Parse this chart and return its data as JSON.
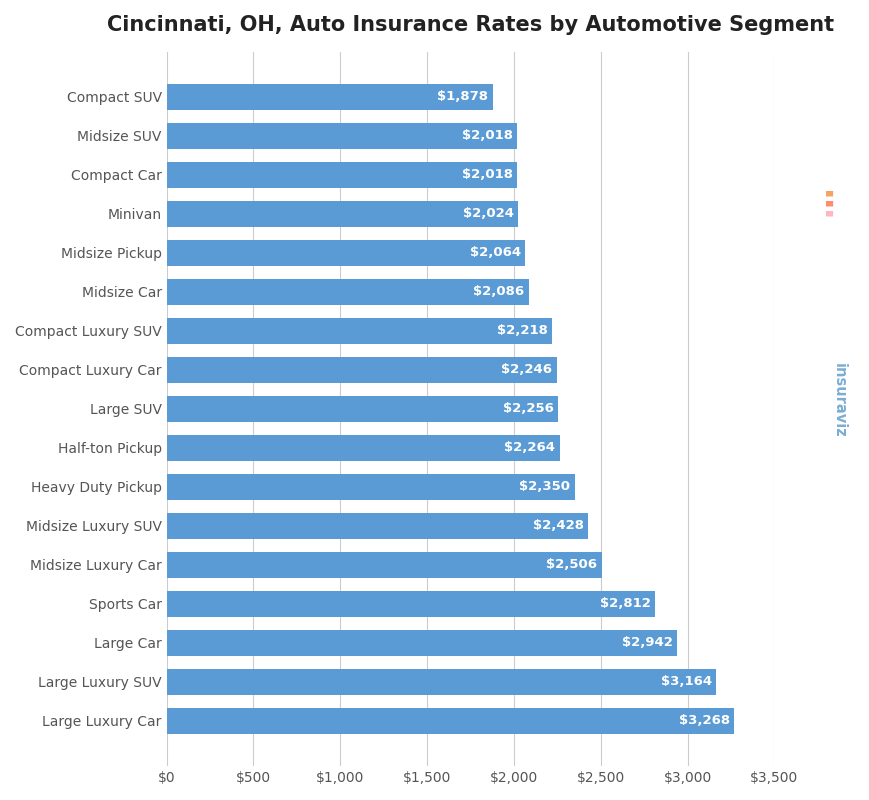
{
  "title": "Cincinnati, OH, Auto Insurance Rates by Automotive Segment",
  "categories": [
    "Compact SUV",
    "Midsize SUV",
    "Compact Car",
    "Minivan",
    "Midsize Pickup",
    "Midsize Car",
    "Compact Luxury SUV",
    "Compact Luxury Car",
    "Large SUV",
    "Half-ton Pickup",
    "Heavy Duty Pickup",
    "Midsize Luxury SUV",
    "Midsize Luxury Car",
    "Sports Car",
    "Large Car",
    "Large Luxury SUV",
    "Large Luxury Car"
  ],
  "values": [
    1878,
    2018,
    2018,
    2024,
    2064,
    2086,
    2218,
    2246,
    2256,
    2264,
    2350,
    2428,
    2506,
    2812,
    2942,
    3164,
    3268
  ],
  "bar_color": "#5b9bd5",
  "label_color": "#ffffff",
  "title_fontsize": 15,
  "bar_label_fontsize": 9.5,
  "tick_fontsize": 10,
  "xlim": [
    0,
    3500
  ],
  "xticks": [
    0,
    500,
    1000,
    1500,
    2000,
    2500,
    3000,
    3500
  ],
  "background_color": "#ffffff",
  "grid_color": "#cccccc",
  "watermark_text": "insuraviz",
  "watermark_color": "#7baed4",
  "watermark_dots": [
    "#f4a460",
    "#ff8c69",
    "#ffb6c1"
  ]
}
